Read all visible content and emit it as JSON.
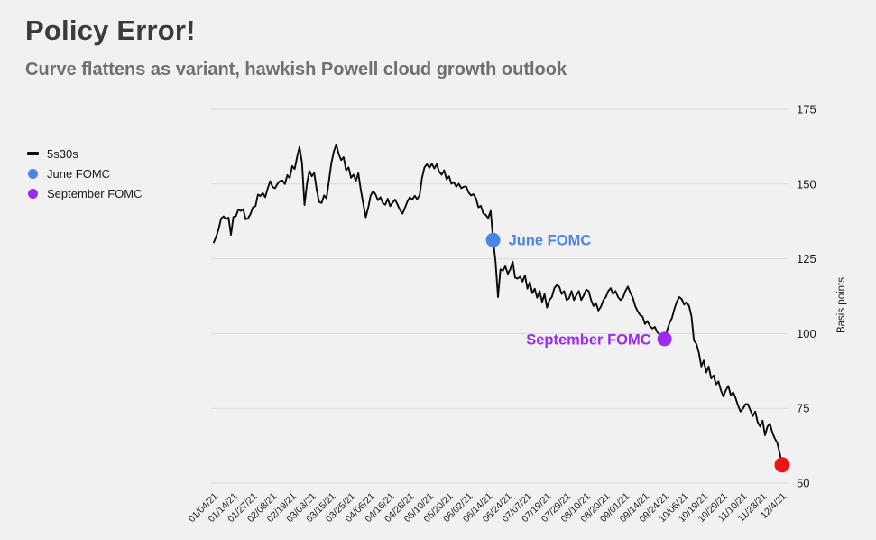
{
  "header": {
    "title": "Policy Error!",
    "subtitle": "Curve flattens as variant, hawkish Powell cloud growth outlook"
  },
  "legend": {
    "items": [
      {
        "label": "5s30s",
        "marker": "dash",
        "color": "#111111"
      },
      {
        "label": "June FOMC",
        "marker": "dot",
        "color": "#4a86e8"
      },
      {
        "label": "September FOMC",
        "marker": "dot",
        "color": "#9b2bf0"
      }
    ]
  },
  "chart_data": {
    "type": "line",
    "title": "Policy Error!",
    "subtitle": "Curve flattens as variant, hawkish Powell cloud growth outlook",
    "ylabel": "Basis points",
    "ylim": [
      50,
      175
    ],
    "yticks": [
      50,
      75,
      100,
      125,
      150,
      175
    ],
    "grid": "horizontal",
    "background_color": "#f1f1f2",
    "gridline_color": "#d9d9d9",
    "x_tick_every": 8,
    "x_tick_labels": [
      "01/04/21",
      "01/14/21",
      "01/27/21",
      "02/08/21",
      "02/19/21",
      "03/03/21",
      "03/15/21",
      "03/25/21",
      "04/06/21",
      "04/16/21",
      "04/28/21",
      "05/10/21",
      "05/20/21",
      "06/02/21",
      "06/14/21",
      "06/24/21",
      "07/07/21",
      "07/19/21",
      "07/29/21",
      "08/10/21",
      "08/20/21",
      "09/01/21",
      "09/14/21",
      "09/24/21",
      "10/06/21",
      "10/19/21",
      "10/29/21",
      "11/10/21",
      "11/23/21",
      "12/4/21"
    ],
    "series": [
      {
        "name": "5s30s",
        "color": "#0b0b0b",
        "values": [
          130.5,
          132.5,
          135.0,
          138.5,
          139.2,
          138.2,
          138.8,
          133.0,
          139.0,
          139.2,
          141.5,
          141.0,
          141.6,
          138.2,
          138.6,
          140.0,
          142.2,
          142.6,
          146.5,
          146.0,
          147.0,
          145.6,
          148.5,
          151.0,
          149.0,
          148.6,
          150.1,
          151.0,
          151.2,
          150.0,
          153.0,
          152.0,
          156.0,
          155.0,
          159.0,
          162.4,
          157.0,
          143.0,
          150.0,
          154.4,
          152.6,
          153.7,
          148.0,
          144.0,
          143.7,
          146.2,
          145.2,
          151.0,
          157.0,
          161.0,
          163.2,
          160.0,
          158.0,
          159.0,
          154.6,
          155.6,
          152.1,
          153.1,
          151.1,
          153.6,
          148.1,
          143.5,
          138.9,
          142.0,
          146.1,
          147.6,
          146.6,
          144.6,
          145.6,
          143.6,
          143.1,
          145.1,
          142.6,
          143.8,
          144.8,
          143.1,
          141.3,
          140.1,
          142.0,
          144.1,
          145.6,
          144.8,
          146.1,
          144.9,
          146.3,
          152.1,
          155.6,
          156.6,
          155.4,
          156.8,
          155.2,
          156.6,
          154.1,
          153.1,
          154.6,
          151.6,
          152.6,
          150.1,
          150.6,
          149.1,
          150.1,
          148.6,
          149.1,
          149.2,
          147.2,
          146.2,
          146.6,
          145.2,
          142.2,
          142.7,
          140.2,
          139.7,
          138.6,
          141.0,
          131.3,
          124.0,
          112.2,
          121.5,
          121.0,
          122.5,
          120.0,
          121.5,
          124.0,
          118.7,
          118.4,
          119.0,
          117.4,
          119.5,
          115.0,
          117.2,
          113.5,
          115.0,
          112.0,
          114.2,
          110.5,
          113.2,
          108.7,
          111.2,
          112.2,
          115.2,
          116.2,
          115.7,
          113.2,
          114.2,
          111.2,
          111.8,
          114.2,
          111.2,
          112.9,
          114.2,
          111.2,
          112.7,
          114.7,
          114.2,
          111.2,
          109.2,
          110.2,
          107.7,
          109.0,
          111.2,
          112.2,
          114.2,
          115.2,
          113.2,
          114.2,
          112.2,
          111.2,
          112.0,
          114.2,
          115.7,
          113.7,
          112.0,
          109.2,
          107.5,
          106.2,
          105.7,
          103.2,
          104.2,
          102.5,
          101.7,
          102.2,
          100.5,
          99.7,
          99.2,
          98.2,
          101.0,
          103.5,
          105.2,
          108.2,
          110.7,
          112.2,
          111.5,
          109.7,
          110.5,
          109.2,
          105.7,
          97.7,
          96.5,
          93.5,
          89.0,
          91.0,
          87.0,
          89.0,
          85.0,
          86.0,
          83.0,
          84.0,
          81.0,
          79.0,
          81.0,
          82.5,
          79.4,
          80.4,
          78.4,
          75.9,
          73.9,
          74.9,
          76.4,
          76.4,
          74.4,
          72.4,
          73.9,
          70.4,
          68.9,
          70.9,
          66.0,
          68.9,
          69.9,
          66.9,
          64.9,
          63.4,
          60.0,
          56.1
        ]
      }
    ],
    "markers": [
      {
        "id": "june-fomc",
        "label": "June FOMC",
        "index": 114,
        "value": 131.3,
        "color": "#4a86e8",
        "label_side": "right"
      },
      {
        "id": "september-fomc",
        "label": "September FOMC",
        "index": 184,
        "value": 98.2,
        "color": "#9b2bf0",
        "label_side": "left"
      },
      {
        "id": "latest-point",
        "label": "",
        "index": 232,
        "value": 56.1,
        "color": "#ee1414",
        "label_side": "none"
      }
    ]
  }
}
